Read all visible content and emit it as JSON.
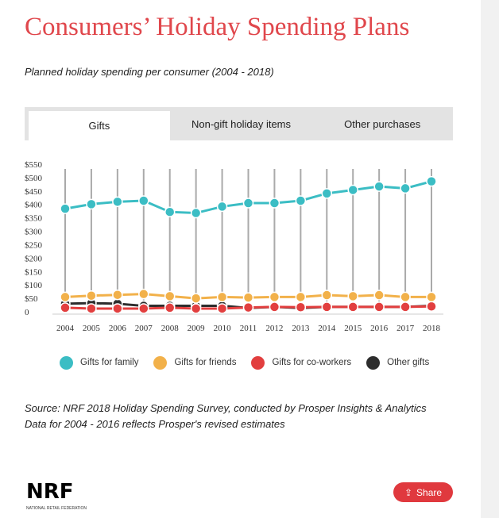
{
  "title": "Consumers’ Holiday Spending Plans",
  "subtitle": "Planned holiday spending per consumer (2004 - 2018)",
  "tabs": [
    {
      "label": "Gifts"
    },
    {
      "label": "Non-gift holiday items"
    },
    {
      "label": "Other purchases"
    }
  ],
  "chart_data": {
    "type": "line",
    "x": [
      "2004",
      "2005",
      "2006",
      "2007",
      "2008",
      "2009",
      "2010",
      "2011",
      "2012",
      "2013",
      "2014",
      "2015",
      "2016",
      "2017",
      "2018"
    ],
    "yticks": [
      "0",
      "$50",
      "$100",
      "$150",
      "$200",
      "$250",
      "$300",
      "$350",
      "$400",
      "$450",
      "$500",
      "$550"
    ],
    "ylim": [
      0,
      550
    ],
    "series": [
      {
        "name": "Gifts for family",
        "color": "#3bbdc4",
        "values": [
          384,
          401,
          410,
          414,
          372,
          368,
          392,
          405,
          405,
          414,
          441,
          454,
          467,
          460,
          486
        ]
      },
      {
        "name": "Gifts for friends",
        "color": "#f2b14a",
        "values": [
          55,
          60,
          63,
          66,
          58,
          50,
          55,
          53,
          55,
          55,
          62,
          58,
          62,
          55,
          55
        ]
      },
      {
        "name": "Gifts for co-workers",
        "color": "#e23f3f",
        "values": [
          15,
          12,
          12,
          12,
          15,
          12,
          12,
          16,
          18,
          17,
          18,
          18,
          18,
          18,
          20
        ]
      },
      {
        "name": "Other gifts",
        "color": "#2d2d2d",
        "values": [
          30,
          32,
          30,
          22,
          22,
          22,
          22,
          14,
          18,
          14,
          18,
          18,
          18,
          18,
          22
        ]
      }
    ],
    "legend": "bottom"
  },
  "source": "Source: NRF 2018 Holiday Spending Survey, conducted by Prosper Insights & Analytics",
  "note": "Data for 2004 - 2016 reflects Prosper's revised estimates",
  "logo": {
    "text": "NRF",
    "tagline": "NATIONAL RETAIL FEDERATION"
  },
  "share_label": "Share"
}
